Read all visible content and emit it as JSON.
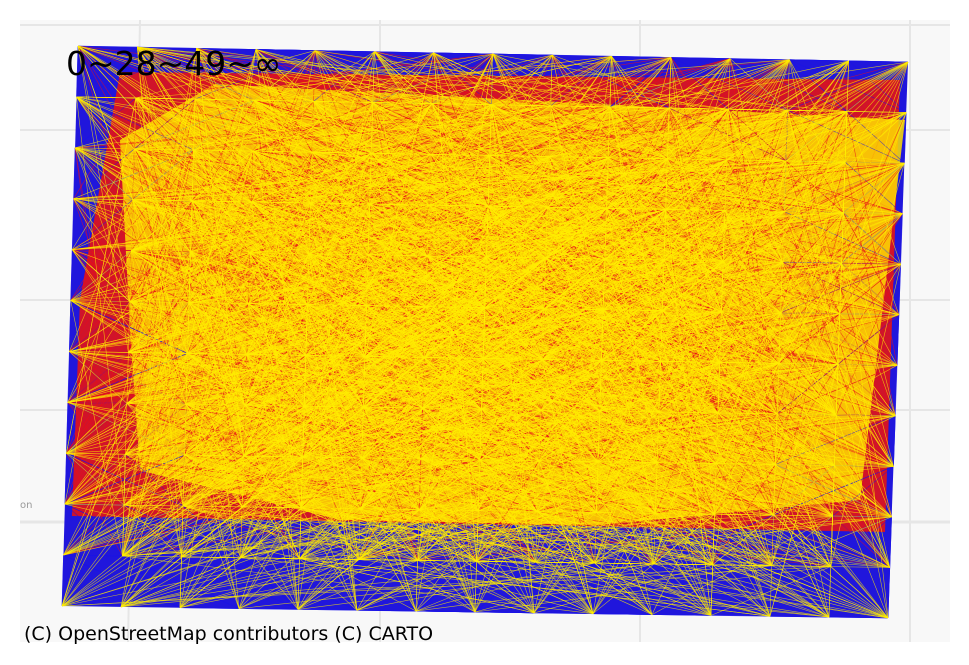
{
  "map": {
    "basemap_colors": {
      "land": "#f8f8f8",
      "roads": "#e4e4e4",
      "road_edge": "#d6d6d6"
    },
    "flow_legend": "0~28~49~∞",
    "flow_classes": [
      {
        "range": "0–28",
        "color": "#1a12e8"
      },
      {
        "range": "28–49",
        "color": "#e8101a"
      },
      {
        "range": "49–∞",
        "color": "#ffee00"
      }
    ],
    "attribution": "(C) OpenStreetMap contributors (C) CARTO",
    "road_label": "on"
  }
}
